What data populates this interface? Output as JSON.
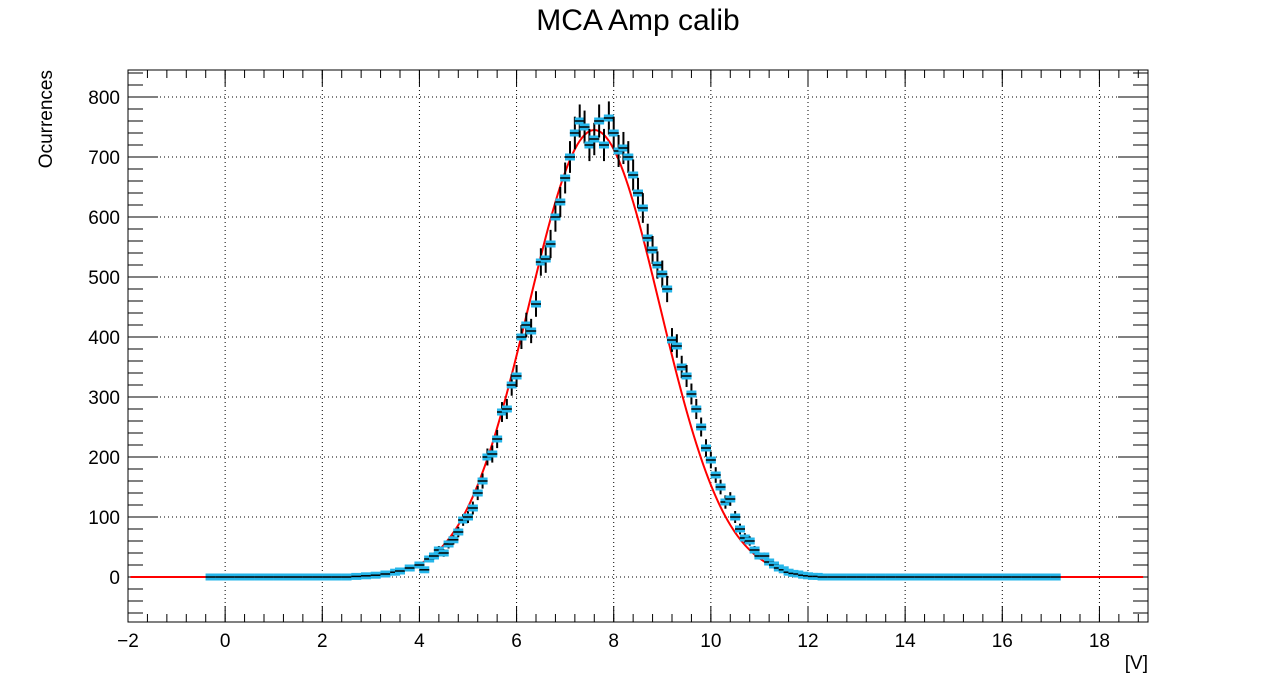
{
  "chart_data": {
    "type": "scatter",
    "title": "MCA Amp calib",
    "xlabel": "[V]",
    "ylabel": "Ocurrences",
    "xlim": [
      -2,
      19
    ],
    "ylim": [
      -75,
      845
    ],
    "x_ticks": [
      -2,
      0,
      2,
      4,
      6,
      8,
      10,
      12,
      14,
      16,
      18
    ],
    "x_tick_labels": [
      "−2",
      "0",
      "2",
      "4",
      "6",
      "8",
      "10",
      "12",
      "14",
      "16",
      "18"
    ],
    "y_ticks": [
      0,
      100,
      200,
      300,
      400,
      500,
      600,
      700,
      800
    ],
    "y_tick_labels": [
      "0",
      "100",
      "200",
      "300",
      "400",
      "500",
      "600",
      "700",
      "800"
    ],
    "grid": true,
    "legend": "none",
    "series": [
      {
        "kind": "data-points-with-errors",
        "marker_color": "#26b6ea",
        "error_color": "#000000",
        "x": [
          -0.3,
          -0.1,
          0.1,
          0.3,
          0.5,
          0.7,
          0.9,
          1.1,
          1.3,
          1.5,
          1.7,
          1.9,
          2.1,
          2.3,
          2.5,
          2.7,
          2.9,
          3.1,
          3.3,
          3.5,
          3.6,
          3.8,
          4.0,
          4.1,
          4.2,
          4.3,
          4.4,
          4.5,
          4.6,
          4.7,
          4.8,
          4.9,
          5.0,
          5.1,
          5.2,
          5.3,
          5.4,
          5.5,
          5.6,
          5.7,
          5.8,
          5.9,
          6.0,
          6.1,
          6.2,
          6.3,
          6.4,
          6.5,
          6.6,
          6.7,
          6.8,
          6.9,
          7.0,
          7.1,
          7.2,
          7.3,
          7.4,
          7.5,
          7.6,
          7.7,
          7.8,
          7.9,
          8.0,
          8.1,
          8.2,
          8.3,
          8.4,
          8.5,
          8.6,
          8.7,
          8.8,
          8.9,
          9.0,
          9.1,
          9.2,
          9.3,
          9.4,
          9.5,
          9.6,
          9.7,
          9.8,
          9.9,
          10.0,
          10.1,
          10.2,
          10.3,
          10.4,
          10.5,
          10.6,
          10.7,
          10.8,
          10.9,
          11.0,
          11.1,
          11.2,
          11.3,
          11.4,
          11.5,
          11.6,
          11.7,
          11.8,
          11.9,
          12.0,
          12.1,
          12.2,
          12.3,
          12.5,
          12.7,
          12.9,
          13.1,
          13.3,
          13.5,
          13.7,
          13.9,
          14.1,
          14.3,
          14.5,
          14.7,
          14.9,
          15.1,
          15.3,
          15.5,
          15.7,
          15.9,
          16.1,
          16.3,
          16.5,
          16.7,
          16.9,
          17.1
        ],
        "y": [
          0,
          0,
          0,
          0,
          0,
          0,
          0,
          0,
          0,
          0,
          0,
          0,
          0,
          0,
          0,
          1,
          2,
          3,
          5,
          8,
          10,
          15,
          20,
          12,
          30,
          35,
          45,
          40,
          55,
          62,
          75,
          95,
          100,
          115,
          140,
          160,
          200,
          205,
          230,
          275,
          280,
          320,
          335,
          400,
          420,
          410,
          455,
          525,
          530,
          555,
          600,
          625,
          665,
          700,
          740,
          760,
          750,
          720,
          730,
          760,
          720,
          765,
          740,
          710,
          715,
          700,
          670,
          640,
          615,
          565,
          545,
          520,
          505,
          480,
          395,
          385,
          350,
          335,
          305,
          280,
          250,
          215,
          195,
          170,
          150,
          125,
          130,
          100,
          80,
          65,
          60,
          45,
          35,
          35,
          25,
          20,
          15,
          12,
          8,
          6,
          5,
          3,
          2,
          1,
          1,
          0,
          0,
          0,
          0,
          0,
          0,
          0,
          0,
          0,
          0,
          0,
          0,
          0,
          0,
          0,
          0,
          0,
          0,
          0,
          0,
          0,
          0,
          0,
          0,
          0
        ]
      },
      {
        "kind": "fit-curve",
        "color": "#ff0000",
        "function": "gaussian",
        "amplitude": 745,
        "mean": 7.6,
        "sigma": 1.35
      }
    ]
  }
}
